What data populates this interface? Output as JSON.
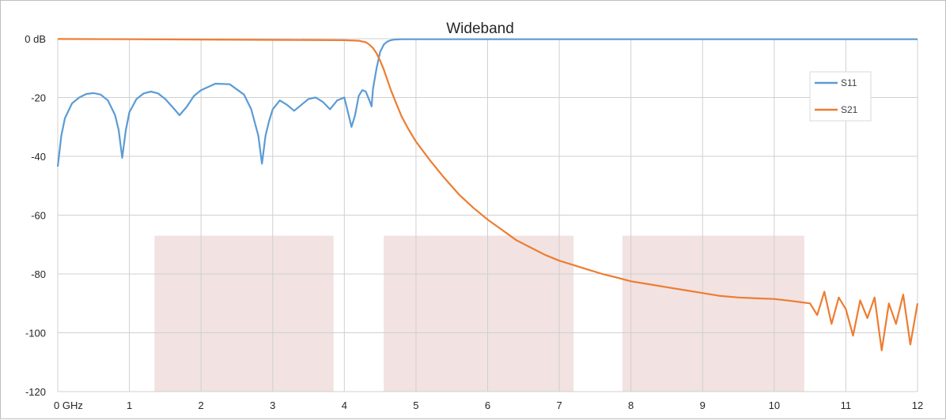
{
  "chart_data": {
    "type": "line",
    "title": "Wideband",
    "xlim": [
      0,
      12
    ],
    "ylim": [
      -120,
      0
    ],
    "x_ticks": [
      {
        "value": 0,
        "label": "0  GHz"
      },
      {
        "value": 1,
        "label": "1"
      },
      {
        "value": 2,
        "label": "2"
      },
      {
        "value": 3,
        "label": "3"
      },
      {
        "value": 4,
        "label": "4"
      },
      {
        "value": 5,
        "label": "5"
      },
      {
        "value": 6,
        "label": "6"
      },
      {
        "value": 7,
        "label": "7"
      },
      {
        "value": 8,
        "label": "8"
      },
      {
        "value": 9,
        "label": "9"
      },
      {
        "value": 10,
        "label": "10"
      },
      {
        "value": 11,
        "label": "11"
      },
      {
        "value": 12,
        "label": "12"
      }
    ],
    "y_ticks": [
      {
        "value": 0,
        "label": "0 dB"
      },
      {
        "value": -20,
        "label": "-20"
      },
      {
        "value": -40,
        "label": "-40"
      },
      {
        "value": -60,
        "label": "-60"
      },
      {
        "value": -80,
        "label": "-80"
      },
      {
        "value": -100,
        "label": "-100"
      },
      {
        "value": -120,
        "label": "-120"
      }
    ],
    "grid": true,
    "legend_position": "top-right",
    "shaded_bands": [
      {
        "x0": 1.35,
        "x1": 3.85,
        "y0": -67,
        "y1": -120,
        "color": "#f2e2e2"
      },
      {
        "x0": 4.55,
        "x1": 7.2,
        "y0": -67,
        "y1": -120,
        "color": "#f2e2e2"
      },
      {
        "x0": 7.88,
        "x1": 10.42,
        "y0": -67,
        "y1": -120,
        "color": "#f2e2e2"
      }
    ],
    "series": [
      {
        "name": "S11",
        "color": "#5b9bd5",
        "x": [
          0,
          0.05,
          0.1,
          0.2,
          0.3,
          0.4,
          0.5,
          0.6,
          0.7,
          0.8,
          0.85,
          0.9,
          0.95,
          1.0,
          1.1,
          1.2,
          1.3,
          1.4,
          1.5,
          1.6,
          1.7,
          1.8,
          1.9,
          2.0,
          2.2,
          2.4,
          2.6,
          2.7,
          2.8,
          2.85,
          2.9,
          2.95,
          3.0,
          3.1,
          3.2,
          3.3,
          3.4,
          3.5,
          3.6,
          3.7,
          3.8,
          3.9,
          4.0,
          4.05,
          4.1,
          4.15,
          4.2,
          4.25,
          4.3,
          4.35,
          4.38,
          4.4,
          4.45,
          4.5,
          4.55,
          4.6,
          4.65,
          4.7,
          4.8,
          4.9,
          5.0,
          6.0,
          7.0,
          8.0,
          9.0,
          10.0,
          11.0,
          12.0
        ],
        "values": [
          -43.5,
          -33,
          -27,
          -22,
          -20,
          -18.8,
          -18.5,
          -19,
          -21,
          -26,
          -31,
          -40.5,
          -31,
          -25,
          -20.5,
          -18.6,
          -18,
          -18.6,
          -20.5,
          -23.2,
          -26,
          -23.2,
          -19.5,
          -17.5,
          -15.3,
          -15.5,
          -19,
          -24,
          -33,
          -42.5,
          -33,
          -28,
          -24,
          -21,
          -22.5,
          -24.5,
          -22.5,
          -20.5,
          -20,
          -21.5,
          -24,
          -21,
          -20,
          -25,
          -30,
          -26,
          -19.5,
          -17.5,
          -18,
          -21,
          -23,
          -17,
          -10,
          -4.5,
          -2,
          -1,
          -0.5,
          -0.3,
          -0.2,
          -0.2,
          -0.2,
          -0.2,
          -0.2,
          -0.2,
          -0.2,
          -0.2,
          -0.2,
          -0.2
        ]
      },
      {
        "name": "S21",
        "color": "#ed7d31",
        "x": [
          0,
          1,
          2,
          3,
          4,
          4.2,
          4.3,
          4.35,
          4.4,
          4.45,
          4.5,
          4.55,
          4.6,
          4.65,
          4.7,
          4.8,
          4.9,
          5.0,
          5.2,
          5.4,
          5.6,
          5.8,
          6.0,
          6.2,
          6.4,
          6.6,
          6.8,
          7.0,
          7.2,
          7.4,
          7.6,
          7.8,
          8.0,
          8.25,
          8.5,
          8.75,
          9.0,
          9.25,
          9.5,
          9.75,
          10.0,
          10.25,
          10.5,
          10.6,
          10.7,
          10.8,
          10.9,
          11.0,
          11.1,
          11.2,
          11.3,
          11.4,
          11.5,
          11.6,
          11.7,
          11.8,
          11.9,
          12.0
        ],
        "values": [
          -0.1,
          -0.2,
          -0.3,
          -0.4,
          -0.5,
          -0.7,
          -1.2,
          -2,
          -3.2,
          -5,
          -7.5,
          -10.5,
          -14,
          -17.5,
          -20.5,
          -26.5,
          -31,
          -35,
          -41.5,
          -47.5,
          -53,
          -57.5,
          -61.5,
          -65,
          -68.5,
          -71,
          -73.5,
          -75.5,
          -77,
          -78.5,
          -80,
          -81.2,
          -82.5,
          -83.5,
          -84.5,
          -85.5,
          -86.5,
          -87.5,
          -88,
          -88.3,
          -88.5,
          -89.2,
          -90,
          -94,
          -86,
          -97,
          -88,
          -92,
          -101,
          -89,
          -95,
          -88,
          -106,
          -90,
          -97,
          -87,
          -104,
          -90
        ]
      }
    ]
  }
}
